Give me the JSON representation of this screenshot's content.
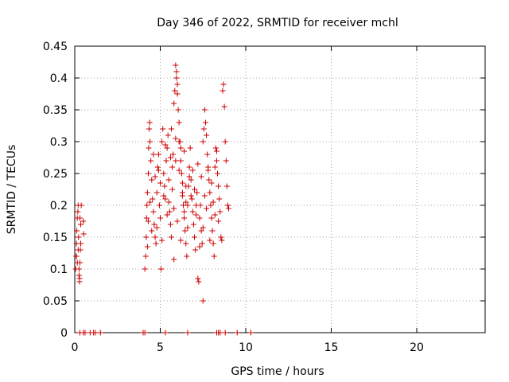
{
  "chart_data": {
    "type": "scatter",
    "title": "Day 346 of 2022, SRMTID for receiver mchl",
    "xlabel": "GPS time / hours",
    "ylabel": "SRMTID / TECUs",
    "xlim": [
      0,
      24
    ],
    "ylim": [
      0,
      0.45
    ],
    "xticks": [
      "0",
      "5",
      "10",
      "15",
      "20"
    ],
    "yticks": [
      "0",
      "0.05",
      "0.1",
      "0.15",
      "0.2",
      "0.25",
      "0.3",
      "0.35",
      "0.4",
      "0.45"
    ],
    "grid": true,
    "marker_color": "#cc0000",
    "series": [
      {
        "marker": "plus",
        "points": [
          [
            0.05,
            0.1
          ],
          [
            0.08,
            0.12
          ],
          [
            0.1,
            0.14
          ],
          [
            0.12,
            0.16
          ],
          [
            0.15,
            0.18
          ],
          [
            0.18,
            0.19
          ],
          [
            0.2,
            0.2
          ],
          [
            0.22,
            0.15
          ],
          [
            0.25,
            0.09
          ],
          [
            0.28,
            0.08
          ],
          [
            0.3,
            0.11
          ],
          [
            0.33,
            0.13
          ],
          [
            0.35,
            0.17
          ],
          [
            0.38,
            0.2
          ],
          [
            0.3,
            0.18
          ],
          [
            0.2,
            0.13
          ],
          [
            0.1,
            0.12
          ],
          [
            0.25,
            0.1
          ],
          [
            0.28,
            0.085
          ],
          [
            0.15,
            0.11
          ],
          [
            0.35,
            0.14
          ],
          [
            0.5,
            0.175
          ],
          [
            0.52,
            0.155
          ],
          [
            4.1,
            0.1
          ],
          [
            4.15,
            0.12
          ],
          [
            4.18,
            0.15
          ],
          [
            4.2,
            0.18
          ],
          [
            4.22,
            0.2
          ],
          [
            4.25,
            0.22
          ],
          [
            4.3,
            0.25
          ],
          [
            4.32,
            0.29
          ],
          [
            4.35,
            0.32
          ],
          [
            4.38,
            0.33
          ],
          [
            4.4,
            0.3
          ],
          [
            4.45,
            0.27
          ],
          [
            4.5,
            0.24
          ],
          [
            4.55,
            0.21
          ],
          [
            4.6,
            0.19
          ],
          [
            4.65,
            0.17
          ],
          [
            4.7,
            0.15
          ],
          [
            4.75,
            0.14
          ],
          [
            4.8,
            0.22
          ],
          [
            4.85,
            0.26
          ],
          [
            4.9,
            0.28
          ],
          [
            4.95,
            0.2
          ],
          [
            5.0,
            0.18
          ],
          [
            5.05,
            0.1
          ],
          [
            5.1,
            0.3
          ],
          [
            5.15,
            0.32
          ],
          [
            5.2,
            0.25
          ],
          [
            5.25,
            0.23
          ],
          [
            5.3,
            0.21
          ],
          [
            5.35,
            0.27
          ],
          [
            5.4,
            0.29
          ],
          [
            5.45,
            0.31
          ],
          [
            5.5,
            0.24
          ],
          [
            5.55,
            0.19
          ],
          [
            5.6,
            0.17
          ],
          [
            5.65,
            0.15
          ],
          [
            5.7,
            0.26
          ],
          [
            5.75,
            0.28
          ],
          [
            5.8,
            0.36
          ],
          [
            5.85,
            0.38
          ],
          [
            5.9,
            0.42
          ],
          [
            5.95,
            0.41
          ],
          [
            6.0,
            0.39
          ],
          [
            6.05,
            0.35
          ],
          [
            6.1,
            0.33
          ],
          [
            6.15,
            0.3
          ],
          [
            6.2,
            0.27
          ],
          [
            6.25,
            0.25
          ],
          [
            6.3,
            0.22
          ],
          [
            6.35,
            0.2
          ],
          [
            6.4,
            0.18
          ],
          [
            6.45,
            0.16
          ],
          [
            6.5,
            0.14
          ],
          [
            6.55,
            0.12
          ],
          [
            5.8,
            0.115
          ],
          [
            6.6,
            0.2
          ],
          [
            6.65,
            0.23
          ],
          [
            6.7,
            0.26
          ],
          [
            6.75,
            0.29
          ],
          [
            6.8,
            0.24
          ],
          [
            6.85,
            0.21
          ],
          [
            6.9,
            0.19
          ],
          [
            6.95,
            0.17
          ],
          [
            7.0,
            0.15
          ],
          [
            7.05,
            0.13
          ],
          [
            7.1,
            0.2
          ],
          [
            7.15,
            0.22
          ],
          [
            7.2,
            0.085
          ],
          [
            7.25,
            0.08
          ],
          [
            7.3,
            0.18
          ],
          [
            7.35,
            0.2
          ],
          [
            7.4,
            0.16
          ],
          [
            7.45,
            0.14
          ],
          [
            7.5,
            0.3
          ],
          [
            7.55,
            0.32
          ],
          [
            7.6,
            0.35
          ],
          [
            7.65,
            0.33
          ],
          [
            7.7,
            0.31
          ],
          [
            7.75,
            0.28
          ],
          [
            7.8,
            0.26
          ],
          [
            7.85,
            0.24
          ],
          [
            7.9,
            0.22
          ],
          [
            7.95,
            0.2
          ],
          [
            8.0,
            0.18
          ],
          [
            8.05,
            0.16
          ],
          [
            8.1,
            0.14
          ],
          [
            8.15,
            0.12
          ],
          [
            7.5,
            0.05
          ],
          [
            8.2,
            0.26
          ],
          [
            8.25,
            0.29
          ],
          [
            8.3,
            0.27
          ],
          [
            8.35,
            0.25
          ],
          [
            8.4,
            0.23
          ],
          [
            8.45,
            0.21
          ],
          [
            8.5,
            0.19
          ],
          [
            8.55,
            0.15
          ],
          [
            8.6,
            0.145
          ],
          [
            8.65,
            0.38
          ],
          [
            8.7,
            0.39
          ],
          [
            8.75,
            0.355
          ],
          [
            8.8,
            0.3
          ],
          [
            8.85,
            0.27
          ],
          [
            8.9,
            0.23
          ],
          [
            8.95,
            0.2
          ],
          [
            9.0,
            0.195
          ],
          [
            4.5,
            0.16
          ],
          [
            4.6,
            0.28
          ],
          [
            4.7,
            0.245
          ],
          [
            4.8,
            0.165
          ],
          [
            4.9,
            0.255
          ],
          [
            5.0,
            0.235
          ],
          [
            5.1,
            0.145
          ],
          [
            5.2,
            0.215
          ],
          [
            5.3,
            0.295
          ],
          [
            5.4,
            0.185
          ],
          [
            5.5,
            0.205
          ],
          [
            5.6,
            0.275
          ],
          [
            5.7,
            0.225
          ],
          [
            5.8,
            0.195
          ],
          [
            5.9,
            0.305
          ],
          [
            6.0,
            0.175
          ],
          [
            6.1,
            0.255
          ],
          [
            6.2,
            0.145
          ],
          [
            6.3,
            0.235
          ],
          [
            6.4,
            0.285
          ],
          [
            6.5,
            0.205
          ],
          [
            6.6,
            0.165
          ],
          [
            6.7,
            0.245
          ],
          [
            6.8,
            0.215
          ],
          [
            6.9,
            0.255
          ],
          [
            7.0,
            0.225
          ],
          [
            7.1,
            0.185
          ],
          [
            7.2,
            0.265
          ],
          [
            7.3,
            0.135
          ],
          [
            7.4,
            0.245
          ],
          [
            7.5,
            0.165
          ],
          [
            7.6,
            0.215
          ],
          [
            7.7,
            0.195
          ],
          [
            7.8,
            0.255
          ],
          [
            7.9,
            0.145
          ],
          [
            8.0,
            0.235
          ],
          [
            8.1,
            0.205
          ],
          [
            8.2,
            0.185
          ],
          [
            8.3,
            0.285
          ],
          [
            8.4,
            0.175
          ],
          [
            6.3,
            0.215
          ],
          [
            6.1,
            0.3
          ],
          [
            5.9,
            0.27
          ],
          [
            5.65,
            0.32
          ],
          [
            6.0,
            0.375
          ],
          [
            5.95,
            0.4
          ],
          [
            6.2,
            0.29
          ],
          [
            6.4,
            0.19
          ],
          [
            6.5,
            0.23
          ],
          [
            4.4,
            0.205
          ],
          [
            4.3,
            0.175
          ],
          [
            4.25,
            0.135
          ],
          [
            0.3,
            0.0
          ],
          [
            0.5,
            0.0
          ],
          [
            0.6,
            0.0
          ],
          [
            0.9,
            0.0
          ],
          [
            1.1,
            0.0
          ],
          [
            1.2,
            0.0
          ],
          [
            1.5,
            0.0
          ],
          [
            4.0,
            0.0
          ],
          [
            4.1,
            0.0
          ],
          [
            5.3,
            0.0
          ],
          [
            6.6,
            0.0
          ],
          [
            8.3,
            0.0
          ],
          [
            8.4,
            0.0
          ],
          [
            8.5,
            0.0
          ],
          [
            8.8,
            0.0
          ],
          [
            9.5,
            0.0
          ],
          [
            10.3,
            0.0
          ]
        ]
      }
    ]
  }
}
